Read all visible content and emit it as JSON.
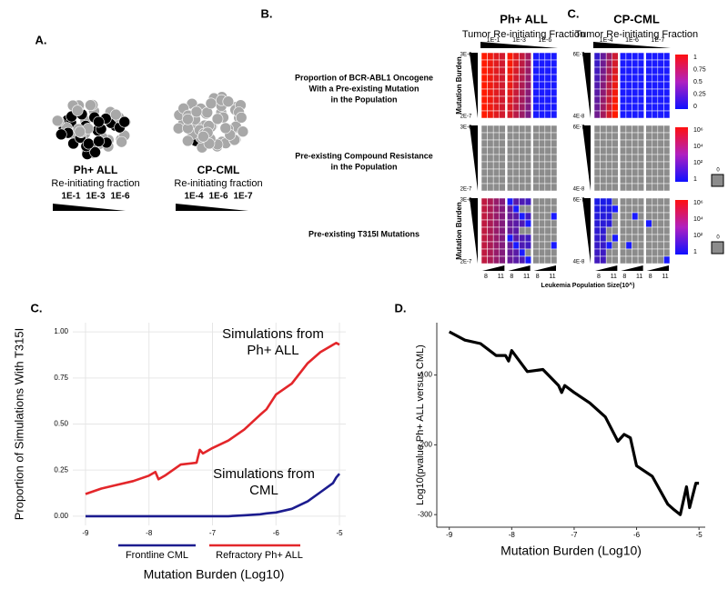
{
  "panel_a": {
    "label": "A.",
    "groups": [
      {
        "name": "Ph+ ALL",
        "caption": "Re-initiating fraction",
        "fractions": [
          "1E-1",
          "1E-3",
          "1E-6"
        ]
      },
      {
        "name": "CP-CML",
        "caption": "Re-initiating fraction",
        "fractions": [
          "1E-4",
          "1E-6",
          "1E-7"
        ]
      }
    ]
  },
  "panel_b": {
    "label": "B.",
    "label_c": "C.",
    "subtitle": "Tumor Re-initiating Fraction",
    "y_axis": "Mutation Burden",
    "x_axis": "Leukemia Population Size(10^)",
    "pop_sizes": [
      "8",
      "11"
    ],
    "na_label": "0",
    "panels": [
      {
        "title": "Ph+ ALL",
        "fractions": [
          "1E-1",
          "1E-3",
          "1E-6"
        ],
        "y_range": [
          "3E-6",
          "2E-7"
        ]
      },
      {
        "title": "CP-CML",
        "fractions": [
          "1E-4",
          "1E-6",
          "1E-7"
        ],
        "y_range": [
          "6E-7",
          "4E-8"
        ]
      }
    ],
    "rows": [
      {
        "lines": [
          "Proportion of BCR-ABL1 Oncogene",
          "With a Pre-existing Mutation",
          "in the Population"
        ],
        "colorbar": [
          "1",
          "0.75",
          "0.5",
          "0.25",
          "0"
        ]
      },
      {
        "lines": [
          "Pre-existing Compound Resistance",
          "in the Population"
        ],
        "colorbar": [
          "10⁶",
          "10⁴",
          "10²",
          "1"
        ]
      },
      {
        "lines": [
          "Pre-existing T315I Mutations"
        ],
        "colorbar": [
          "10⁶",
          "10⁴",
          "10²",
          "1"
        ]
      }
    ]
  },
  "chart_data": [
    {
      "type": "line",
      "panel_label": "C.",
      "xlabel": "Mutation Burden (Log10)",
      "ylabel": "Proportion of Simulations With T315I",
      "xlim": [
        -9.2,
        -4.9
      ],
      "ylim": [
        -0.05,
        1.05
      ],
      "xticks": [
        -9,
        -8,
        -7,
        -6,
        -5
      ],
      "yticks": [
        {
          "value": 0,
          "label": "0.00"
        },
        {
          "value": 0.25,
          "label": "0.25"
        },
        {
          "value": 0.5,
          "label": "0.50"
        },
        {
          "value": 0.75,
          "label": "0.75"
        },
        {
          "value": 1,
          "label": "1.00"
        }
      ],
      "grid": true,
      "legend": "bottom",
      "x": [
        -9,
        -8.75,
        -8.5,
        -8.25,
        -8,
        -7.9,
        -7.85,
        -7.75,
        -7.5,
        -7.25,
        -7.2,
        -7.15,
        -7,
        -6.75,
        -6.5,
        -6.25,
        -6.15,
        -6,
        -5.75,
        -5.5,
        -5.3,
        -5.1,
        -5.05,
        -5
      ],
      "series": [
        {
          "name": "Frontline CML",
          "color": "#1c1c8f",
          "values": [
            0,
            0,
            0,
            0,
            0,
            0,
            0,
            0,
            0,
            0,
            0,
            0,
            0,
            0,
            0.005,
            0.01,
            0.015,
            0.02,
            0.04,
            0.08,
            0.13,
            0.18,
            0.21,
            0.23
          ]
        },
        {
          "name": "Refractory Ph+ ALL",
          "color": "#e3262a",
          "values": [
            0.12,
            0.15,
            0.17,
            0.19,
            0.22,
            0.24,
            0.2,
            0.22,
            0.28,
            0.29,
            0.36,
            0.34,
            0.37,
            0.41,
            0.47,
            0.55,
            0.58,
            0.66,
            0.72,
            0.83,
            0.89,
            0.93,
            0.94,
            0.93
          ]
        }
      ],
      "annotations": [
        {
          "lines": [
            "Simulations from",
            "Ph+ ALL"
          ],
          "color": "#e3262a"
        },
        {
          "lines": [
            "Simulations from",
            "CML"
          ],
          "color": "#1c1c8f"
        }
      ]
    },
    {
      "type": "line",
      "panel_label": "D.",
      "xlabel": "Mutation Burden (Log10)",
      "ylabel": "Log10(pvalue Ph+ ALL versus CML)",
      "xlim": [
        -9.2,
        -4.9
      ],
      "ylim": [
        -318,
        -25
      ],
      "xticks": [
        -9,
        -8,
        -7,
        -6,
        -5
      ],
      "yticks": [
        -300,
        -200,
        -100
      ],
      "grid": false,
      "x": [
        -9,
        -8.75,
        -8.5,
        -8.25,
        -8.1,
        -8.05,
        -8,
        -7.75,
        -7.5,
        -7.25,
        -7.2,
        -7.15,
        -7,
        -6.75,
        -6.5,
        -6.3,
        -6.2,
        -6.1,
        -6,
        -5.75,
        -5.5,
        -5.4,
        -5.3,
        -5.2,
        -5.15,
        -5.05,
        -5
      ],
      "series": [
        {
          "color": "#000000",
          "values": [
            -38,
            -50,
            -55,
            -72,
            -72,
            -80,
            -65,
            -95,
            -92,
            -115,
            -125,
            -115,
            -125,
            -140,
            -160,
            -195,
            -185,
            -190,
            -230,
            -245,
            -285,
            -293,
            -300,
            -260,
            -290,
            -255,
            -255
          ]
        }
      ]
    }
  ]
}
